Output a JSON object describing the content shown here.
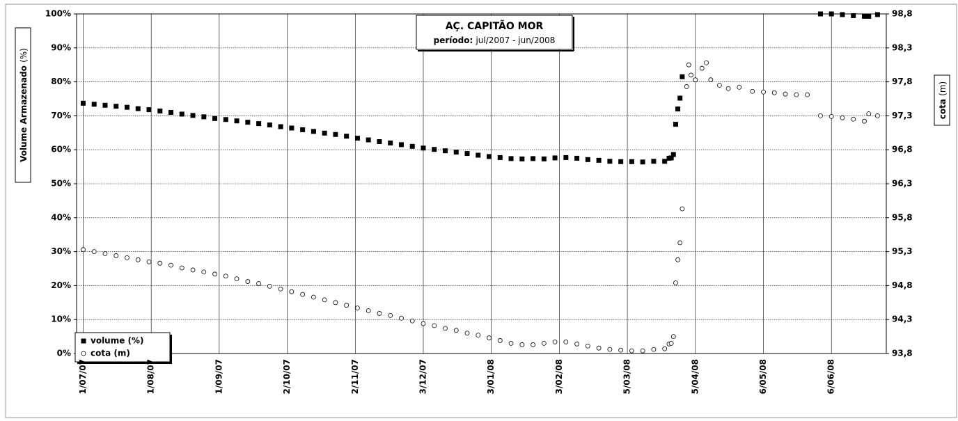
{
  "chart_data": {
    "type": "scatter",
    "title": "AÇ. CAPITÃO MOR",
    "subtitle_label": "período:",
    "subtitle": "jul/2007 - jun/2008",
    "ylabel": "Volume Armazenado",
    "ylabel_unit": "(%)",
    "y2label": "cota",
    "y2label_unit": "(m)",
    "grid": true,
    "legend": "lower left",
    "xlim": [
      "2007-06-28",
      "2008-07-01"
    ],
    "xticks": [
      {
        "value": "2007-07-01",
        "label": "1/07/07"
      },
      {
        "value": "2007-08-01",
        "label": "1/08/07"
      },
      {
        "value": "2007-09-01",
        "label": "1/09/07"
      },
      {
        "value": "2007-10-02",
        "label": "2/10/07"
      },
      {
        "value": "2007-11-02",
        "label": "2/11/07"
      },
      {
        "value": "2007-12-03",
        "label": "3/12/07"
      },
      {
        "value": "2008-01-03",
        "label": "3/01/08"
      },
      {
        "value": "2008-02-03",
        "label": "3/02/08"
      },
      {
        "value": "2008-03-05",
        "label": "5/03/08"
      },
      {
        "value": "2008-04-05",
        "label": "5/04/08"
      },
      {
        "value": "2008-05-06",
        "label": "6/05/08"
      },
      {
        "value": "2008-06-06",
        "label": "6/06/08"
      }
    ],
    "ylim": [
      0,
      100
    ],
    "yticks": [
      {
        "value": 0,
        "label": "0%"
      },
      {
        "value": 10,
        "label": "10%"
      },
      {
        "value": 20,
        "label": "20%"
      },
      {
        "value": 30,
        "label": "30%"
      },
      {
        "value": 40,
        "label": "40%"
      },
      {
        "value": 50,
        "label": "50%"
      },
      {
        "value": 60,
        "label": "60%"
      },
      {
        "value": 70,
        "label": "70%"
      },
      {
        "value": 80,
        "label": "80%"
      },
      {
        "value": 90,
        "label": "90%"
      },
      {
        "value": 100,
        "label": "100%"
      }
    ],
    "y2lim": [
      93.8,
      98.8
    ],
    "y2ticks": [
      {
        "value": 93.8,
        "label": "93,8"
      },
      {
        "value": 94.3,
        "label": "94,3"
      },
      {
        "value": 94.8,
        "label": "94,8"
      },
      {
        "value": 95.3,
        "label": "95,3"
      },
      {
        "value": 95.8,
        "label": "95,8"
      },
      {
        "value": 96.3,
        "label": "96,3"
      },
      {
        "value": 96.8,
        "label": "96,8"
      },
      {
        "value": 97.3,
        "label": "97,3"
      },
      {
        "value": 97.8,
        "label": "97,8"
      },
      {
        "value": 98.3,
        "label": "98,3"
      },
      {
        "value": 98.8,
        "label": "98,8"
      }
    ],
    "x": [
      "2007-07-01",
      "2007-07-06",
      "2007-07-11",
      "2007-07-16",
      "2007-07-21",
      "2007-07-26",
      "2007-07-31",
      "2007-08-05",
      "2007-08-10",
      "2007-08-15",
      "2007-08-20",
      "2007-08-25",
      "2007-08-30",
      "2007-09-04",
      "2007-09-09",
      "2007-09-14",
      "2007-09-19",
      "2007-09-24",
      "2007-09-29",
      "2007-10-04",
      "2007-10-09",
      "2007-10-14",
      "2007-10-19",
      "2007-10-24",
      "2007-10-29",
      "2007-11-03",
      "2007-11-08",
      "2007-11-13",
      "2007-11-18",
      "2007-11-23",
      "2007-11-28",
      "2007-12-03",
      "2007-12-08",
      "2007-12-13",
      "2007-12-18",
      "2007-12-23",
      "2007-12-28",
      "2008-01-02",
      "2008-01-07",
      "2008-01-12",
      "2008-01-17",
      "2008-01-22",
      "2008-01-27",
      "2008-02-01",
      "2008-02-06",
      "2008-02-11",
      "2008-02-16",
      "2008-02-21",
      "2008-02-26",
      "2008-03-02",
      "2008-03-07",
      "2008-03-12",
      "2008-03-17",
      "2008-03-22",
      "2008-03-24",
      "2008-03-25",
      "2008-03-26",
      "2008-03-27",
      "2008-03-28",
      "2008-03-29",
      "2008-03-30",
      "2008-04-01",
      "2008-04-02",
      "2008-04-03",
      "2008-04-05",
      "2008-04-08",
      "2008-04-10",
      "2008-04-12",
      "2008-04-16",
      "2008-04-20",
      "2008-04-25",
      "2008-05-01",
      "2008-05-06",
      "2008-05-11",
      "2008-05-16",
      "2008-05-21",
      "2008-05-26",
      "2008-06-01",
      "2008-06-06",
      "2008-06-11",
      "2008-06-16",
      "2008-06-21",
      "2008-06-23",
      "2008-06-27"
    ],
    "series": [
      {
        "name": "volume (%)",
        "color": "#000000",
        "marker": "square",
        "axis": "y",
        "values": [
          73.7,
          73.4,
          73.1,
          72.8,
          72.5,
          72.1,
          71.8,
          71.4,
          71.0,
          70.5,
          70.1,
          69.7,
          69.2,
          68.9,
          68.5,
          68.1,
          67.7,
          67.3,
          66.8,
          66.4,
          65.9,
          65.4,
          64.9,
          64.5,
          64.0,
          63.4,
          62.9,
          62.4,
          62.0,
          61.5,
          61.0,
          60.5,
          60.1,
          59.7,
          59.3,
          58.9,
          58.4,
          58.0,
          57.7,
          57.4,
          57.3,
          57.4,
          57.3,
          57.6,
          57.7,
          57.5,
          57.1,
          56.9,
          56.6,
          56.5,
          56.5,
          56.4,
          56.6,
          56.6,
          57.5,
          57.6,
          58.6,
          67.5,
          72.0,
          75.2,
          81.5,
          null,
          null,
          null,
          null,
          null,
          null,
          null,
          null,
          null,
          null,
          null,
          null,
          null,
          null,
          null,
          null,
          100.0,
          100.0,
          99.8,
          99.5,
          99.3,
          99.3,
          99.8
        ]
      },
      {
        "name": "cota (m)",
        "color": "#000000",
        "marker": "circle",
        "axis": "y2",
        "values": [
          95.33,
          95.3,
          95.27,
          95.24,
          95.21,
          95.18,
          95.15,
          95.13,
          95.1,
          95.06,
          95.03,
          95.0,
          94.97,
          94.94,
          94.9,
          94.86,
          94.83,
          94.79,
          94.75,
          94.71,
          94.67,
          94.63,
          94.59,
          94.55,
          94.51,
          94.47,
          94.43,
          94.39,
          94.36,
          94.32,
          94.28,
          94.24,
          94.21,
          94.17,
          94.14,
          94.1,
          94.07,
          94.03,
          93.99,
          93.95,
          93.93,
          93.93,
          93.95,
          93.97,
          93.97,
          93.94,
          93.91,
          93.88,
          93.86,
          93.85,
          93.84,
          93.84,
          93.86,
          93.87,
          93.94,
          93.95,
          94.05,
          94.84,
          95.18,
          95.43,
          95.93,
          97.73,
          98.05,
          97.9,
          97.83,
          98.0,
          98.08,
          97.83,
          97.75,
          97.7,
          97.72,
          97.66,
          97.65,
          97.64,
          97.62,
          97.61,
          97.61,
          97.3,
          97.29,
          97.27,
          97.25,
          97.22,
          97.33,
          97.3
        ]
      }
    ]
  }
}
